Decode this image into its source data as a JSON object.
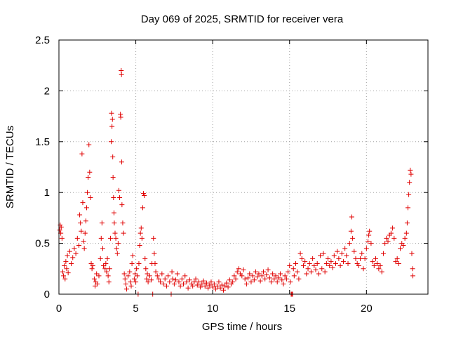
{
  "chart_data": {
    "type": "scatter",
    "title": "Day 069 of 2025, SRMTID for receiver vera",
    "xlabel": "GPS time / hours",
    "ylabel": "SRMTID / TECUs",
    "xlim": [
      0,
      24
    ],
    "ylim": [
      0,
      2.5
    ],
    "xticks": [
      "0",
      "5",
      "10",
      "15",
      "20"
    ],
    "yticks": [
      "0",
      "0.5",
      "1",
      "1.5",
      "2",
      "2.5"
    ],
    "grid": true,
    "marker": "plus",
    "color": "#e00000",
    "series": [
      {
        "name": "SRMTID",
        "points": [
          [
            0.05,
            0.63
          ],
          [
            0.08,
            0.68
          ],
          [
            0.12,
            0.6
          ],
          [
            0.15,
            0.66
          ],
          [
            0.2,
            0.55
          ],
          [
            0.25,
            0.22
          ],
          [
            0.3,
            0.18
          ],
          [
            0.35,
            0.28
          ],
          [
            0.4,
            0.15
          ],
          [
            0.45,
            0.32
          ],
          [
            0.5,
            0.25
          ],
          [
            0.55,
            0.38
          ],
          [
            0.6,
            0.21
          ],
          [
            0.7,
            0.42
          ],
          [
            0.8,
            0.3
          ],
          [
            0.9,
            0.36
          ],
          [
            1.0,
            0.45
          ],
          [
            1.1,
            0.4
          ],
          [
            1.2,
            0.55
          ],
          [
            1.3,
            0.48
          ],
          [
            1.35,
            0.78
          ],
          [
            1.4,
            0.7
          ],
          [
            1.45,
            0.62
          ],
          [
            1.5,
            1.38
          ],
          [
            1.55,
            0.9
          ],
          [
            1.6,
            0.52
          ],
          [
            1.65,
            0.45
          ],
          [
            1.7,
            0.6
          ],
          [
            1.75,
            0.72
          ],
          [
            1.8,
            0.85
          ],
          [
            1.85,
            1.0
          ],
          [
            1.9,
            1.15
          ],
          [
            1.95,
            1.47
          ],
          [
            2.0,
            1.2
          ],
          [
            2.05,
            0.95
          ],
          [
            2.1,
            0.3
          ],
          [
            2.15,
            0.25
          ],
          [
            2.2,
            0.28
          ],
          [
            2.3,
            0.15
          ],
          [
            2.35,
            0.08
          ],
          [
            2.4,
            0.12
          ],
          [
            2.45,
            0.2
          ],
          [
            2.5,
            0.1
          ],
          [
            2.6,
            0.18
          ],
          [
            2.7,
            0.35
          ],
          [
            2.75,
            0.55
          ],
          [
            2.8,
            0.7
          ],
          [
            2.85,
            0.45
          ],
          [
            2.9,
            0.28
          ],
          [
            3.0,
            0.25
          ],
          [
            3.05,
            0.3
          ],
          [
            3.1,
            0.22
          ],
          [
            3.15,
            0.35
          ],
          [
            3.2,
            0.18
          ],
          [
            3.25,
            0.12
          ],
          [
            3.3,
            0.25
          ],
          [
            3.35,
            0.55
          ],
          [
            3.4,
            1.5
          ],
          [
            3.42,
            1.78
          ],
          [
            3.45,
            1.65
          ],
          [
            3.48,
            1.72
          ],
          [
            3.5,
            1.35
          ],
          [
            3.52,
            1.15
          ],
          [
            3.55,
            0.95
          ],
          [
            3.58,
            0.8
          ],
          [
            3.6,
            0.7
          ],
          [
            3.65,
            0.6
          ],
          [
            3.7,
            0.55
          ],
          [
            3.75,
            0.45
          ],
          [
            3.8,
            0.4
          ],
          [
            3.85,
            0.5
          ],
          [
            3.9,
            1.02
          ],
          [
            3.95,
            0.95
          ],
          [
            4.0,
            1.77
          ],
          [
            4.02,
            1.74
          ],
          [
            4.05,
            2.2
          ],
          [
            4.07,
            2.16
          ],
          [
            4.08,
            1.3
          ],
          [
            4.1,
            0.88
          ],
          [
            4.15,
            0.7
          ],
          [
            4.2,
            0.6
          ],
          [
            4.25,
            0.2
          ],
          [
            4.3,
            0.15
          ],
          [
            4.35,
            0.1
          ],
          [
            4.4,
            0.05
          ],
          [
            4.5,
            0.18
          ],
          [
            4.6,
            0.22
          ],
          [
            4.65,
            0.12
          ],
          [
            4.7,
            0.08
          ],
          [
            4.75,
            0.3
          ],
          [
            4.8,
            0.38
          ],
          [
            4.9,
            0.15
          ],
          [
            4.95,
            0.2
          ],
          [
            5.0,
            0.12
          ],
          [
            5.05,
            0.25
          ],
          [
            5.1,
            0.18
          ],
          [
            5.15,
            0.0
          ],
          [
            5.2,
            0.3
          ],
          [
            5.25,
            0.48
          ],
          [
            5.3,
            0.6
          ],
          [
            5.35,
            0.65
          ],
          [
            5.4,
            0.55
          ],
          [
            5.45,
            0.85
          ],
          [
            5.5,
            0.99
          ],
          [
            5.55,
            0.97
          ],
          [
            5.6,
            0.35
          ],
          [
            5.65,
            0.25
          ],
          [
            5.7,
            0.15
          ],
          [
            5.75,
            0.2
          ],
          [
            5.8,
            0.12
          ],
          [
            5.9,
            0.18
          ],
          [
            6.0,
            0.14
          ],
          [
            6.05,
            0.3
          ],
          [
            6.1,
            0.0
          ],
          [
            6.15,
            0.55
          ],
          [
            6.2,
            0.4
          ],
          [
            6.25,
            0.3
          ],
          [
            6.3,
            0.22
          ],
          [
            6.4,
            0.18
          ],
          [
            6.5,
            0.15
          ],
          [
            6.6,
            0.12
          ],
          [
            6.7,
            0.2
          ],
          [
            6.8,
            0.1
          ],
          [
            6.9,
            0.15
          ],
          [
            7.0,
            0.08
          ],
          [
            7.1,
            0.18
          ],
          [
            7.2,
            0.12
          ],
          [
            7.3,
            0.0
          ],
          [
            7.35,
            0.22
          ],
          [
            7.4,
            0.15
          ],
          [
            7.5,
            0.1
          ],
          [
            7.6,
            0.14
          ],
          [
            7.7,
            0.2
          ],
          [
            7.8,
            0.12
          ],
          [
            7.9,
            0.08
          ],
          [
            8.0,
            0.15
          ],
          [
            8.1,
            0.1
          ],
          [
            8.2,
            0.18
          ],
          [
            8.3,
            0.12
          ],
          [
            8.4,
            0.06
          ],
          [
            8.5,
            0.14
          ],
          [
            8.6,
            0.1
          ],
          [
            8.7,
            0.08
          ],
          [
            8.8,
            0.12
          ],
          [
            8.9,
            0.15
          ],
          [
            9.0,
            0.09
          ],
          [
            9.1,
            0.12
          ],
          [
            9.2,
            0.07
          ],
          [
            9.3,
            0.1
          ],
          [
            9.4,
            0.13
          ],
          [
            9.5,
            0.08
          ],
          [
            9.6,
            0.11
          ],
          [
            9.7,
            0.06
          ],
          [
            9.8,
            0.09
          ],
          [
            9.9,
            0.12
          ],
          [
            10.0,
            0.07
          ],
          [
            10.1,
            0.1
          ],
          [
            10.2,
            0.05
          ],
          [
            10.3,
            0.08
          ],
          [
            10.4,
            0.12
          ],
          [
            10.5,
            0.06
          ],
          [
            10.6,
            0.09
          ],
          [
            10.7,
            0.04
          ],
          [
            10.8,
            0.08
          ],
          [
            10.9,
            0.11
          ],
          [
            11.0,
            0.07
          ],
          [
            11.1,
            0.14
          ],
          [
            11.2,
            0.1
          ],
          [
            11.3,
            0.12
          ],
          [
            11.4,
            0.18
          ],
          [
            11.5,
            0.15
          ],
          [
            11.6,
            0.22
          ],
          [
            11.7,
            0.25
          ],
          [
            11.8,
            0.2
          ],
          [
            11.9,
            0.18
          ],
          [
            12.0,
            0.24
          ],
          [
            12.1,
            0.15
          ],
          [
            12.2,
            0.1
          ],
          [
            12.3,
            0.16
          ],
          [
            12.4,
            0.2
          ],
          [
            12.5,
            0.12
          ],
          [
            12.6,
            0.18
          ],
          [
            12.7,
            0.14
          ],
          [
            12.8,
            0.22
          ],
          [
            12.9,
            0.17
          ],
          [
            13.0,
            0.2
          ],
          [
            13.1,
            0.13
          ],
          [
            13.2,
            0.18
          ],
          [
            13.3,
            0.22
          ],
          [
            13.4,
            0.15
          ],
          [
            13.5,
            0.19
          ],
          [
            13.6,
            0.24
          ],
          [
            13.7,
            0.16
          ],
          [
            13.8,
            0.12
          ],
          [
            13.9,
            0.2
          ],
          [
            14.0,
            0.15
          ],
          [
            14.1,
            0.18
          ],
          [
            14.2,
            0.12
          ],
          [
            14.3,
            0.16
          ],
          [
            14.4,
            0.2
          ],
          [
            14.5,
            0.14
          ],
          [
            14.6,
            0.1
          ],
          [
            14.7,
            0.18
          ],
          [
            14.8,
            0.15
          ],
          [
            14.9,
            0.22
          ],
          [
            15.0,
            0.28
          ],
          [
            15.05,
            0.12
          ],
          [
            15.1,
            0.0
          ],
          [
            15.15,
            0.0
          ],
          [
            15.2,
            0.0
          ],
          [
            15.25,
            0.25
          ],
          [
            15.3,
            0.18
          ],
          [
            15.4,
            0.3
          ],
          [
            15.5,
            0.22
          ],
          [
            15.6,
            0.15
          ],
          [
            15.7,
            0.4
          ],
          [
            15.8,
            0.35
          ],
          [
            15.9,
            0.28
          ],
          [
            16.0,
            0.32
          ],
          [
            16.1,
            0.2
          ],
          [
            16.2,
            0.25
          ],
          [
            16.3,
            0.3
          ],
          [
            16.4,
            0.22
          ],
          [
            16.5,
            0.35
          ],
          [
            16.6,
            0.28
          ],
          [
            16.7,
            0.24
          ],
          [
            16.8,
            0.3
          ],
          [
            16.9,
            0.2
          ],
          [
            17.0,
            0.38
          ],
          [
            17.1,
            0.25
          ],
          [
            17.2,
            0.4
          ],
          [
            17.3,
            0.22
          ],
          [
            17.4,
            0.3
          ],
          [
            17.5,
            0.35
          ],
          [
            17.6,
            0.28
          ],
          [
            17.7,
            0.32
          ],
          [
            17.8,
            0.26
          ],
          [
            17.9,
            0.38
          ],
          [
            18.0,
            0.3
          ],
          [
            18.1,
            0.42
          ],
          [
            18.2,
            0.35
          ],
          [
            18.3,
            0.28
          ],
          [
            18.4,
            0.4
          ],
          [
            18.5,
            0.32
          ],
          [
            18.6,
            0.45
          ],
          [
            18.7,
            0.38
          ],
          [
            18.8,
            0.3
          ],
          [
            18.9,
            0.5
          ],
          [
            19.0,
            0.62
          ],
          [
            19.05,
            0.76
          ],
          [
            19.1,
            0.55
          ],
          [
            19.2,
            0.42
          ],
          [
            19.3,
            0.35
          ],
          [
            19.4,
            0.3
          ],
          [
            19.5,
            0.28
          ],
          [
            19.6,
            0.35
          ],
          [
            19.7,
            0.4
          ],
          [
            19.8,
            0.25
          ],
          [
            19.9,
            0.35
          ],
          [
            20.0,
            0.45
          ],
          [
            20.1,
            0.52
          ],
          [
            20.15,
            0.58
          ],
          [
            20.2,
            0.62
          ],
          [
            20.3,
            0.5
          ],
          [
            20.4,
            0.32
          ],
          [
            20.5,
            0.28
          ],
          [
            20.6,
            0.35
          ],
          [
            20.7,
            0.3
          ],
          [
            20.8,
            0.25
          ],
          [
            20.9,
            0.28
          ],
          [
            21.0,
            0.22
          ],
          [
            21.1,
            0.4
          ],
          [
            21.2,
            0.5
          ],
          [
            21.3,
            0.55
          ],
          [
            21.4,
            0.52
          ],
          [
            21.5,
            0.58
          ],
          [
            21.6,
            0.6
          ],
          [
            21.7,
            0.65
          ],
          [
            21.8,
            0.55
          ],
          [
            21.9,
            0.32
          ],
          [
            22.0,
            0.35
          ],
          [
            22.1,
            0.3
          ],
          [
            22.2,
            0.45
          ],
          [
            22.3,
            0.5
          ],
          [
            22.4,
            0.48
          ],
          [
            22.5,
            0.55
          ],
          [
            22.6,
            0.6
          ],
          [
            22.65,
            0.7
          ],
          [
            22.7,
            0.85
          ],
          [
            22.75,
            0.98
          ],
          [
            22.8,
            1.1
          ],
          [
            22.85,
            1.22
          ],
          [
            22.9,
            1.18
          ],
          [
            22.95,
            0.4
          ],
          [
            23.0,
            0.25
          ],
          [
            23.02,
            0.18
          ]
        ]
      }
    ]
  }
}
